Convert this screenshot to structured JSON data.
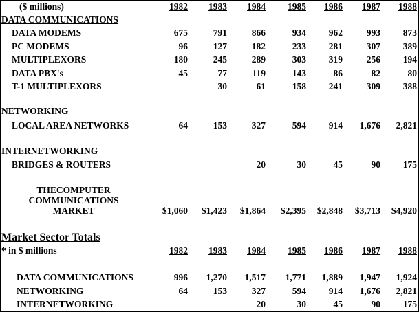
{
  "header": {
    "units": "($ millions)",
    "years": [
      "1982",
      "1983",
      "1984",
      "1985",
      "1986",
      "1987",
      "1988"
    ]
  },
  "sections": {
    "datacom": {
      "title": "DATA COMMUNICATIONS",
      "rows": [
        {
          "label": "DATA MODEMS",
          "values": [
            "675",
            "791",
            "866",
            "934",
            "962",
            "993",
            "873"
          ]
        },
        {
          "label": "PC MODEMS",
          "values": [
            "96",
            "127",
            "182",
            "233",
            "281",
            "307",
            "389"
          ]
        },
        {
          "label": "MULTIPLEXORS",
          "values": [
            "180",
            "245",
            "289",
            "303",
            "319",
            "256",
            "194"
          ]
        },
        {
          "label": "DATA PBX's",
          "values": [
            "45",
            "77",
            "119",
            "143",
            "86",
            "82",
            "80"
          ]
        },
        {
          "label": "T-1 MULTIPLEXORS",
          "values": [
            "",
            "30",
            "61",
            "158",
            "241",
            "309",
            "388"
          ]
        }
      ]
    },
    "networking": {
      "title": "NETWORKING",
      "rows": [
        {
          "label": "LOCAL AREA NETWORKS",
          "values": [
            "64",
            "153",
            "327",
            "594",
            "914",
            "1,676",
            "2,821"
          ]
        }
      ]
    },
    "internetworking": {
      "title": "INTERNETWORKING",
      "rows": [
        {
          "label": "BRIDGES & ROUTERS",
          "values": [
            "",
            "",
            "20",
            "30",
            "45",
            "90",
            "175"
          ]
        }
      ]
    }
  },
  "market": {
    "label_lines": [
      "THECOMPUTER",
      "COMMUNICATIONS",
      "MARKET"
    ],
    "values": [
      "$1,060",
      "$1,423",
      "$1,864",
      "$2,395",
      "$2,848",
      "$3,713",
      "$4,920"
    ]
  },
  "totals": {
    "title": "Market Sector Totals",
    "units": "* in $ millions",
    "years": [
      "1982",
      "1983",
      "1984",
      "1985",
      "1986",
      "1987",
      "1988"
    ],
    "rows": [
      {
        "label": "DATA COMMUNICATIONS",
        "values": [
          "996",
          "1,270",
          "1,517",
          "1,771",
          "1,889",
          "1,947",
          "1,924"
        ]
      },
      {
        "label": "NETWORKING",
        "values": [
          "64",
          "153",
          "327",
          "594",
          "914",
          "1,676",
          "2,821"
        ]
      },
      {
        "label": "INTERNETWORKING",
        "values": [
          "",
          "",
          "20",
          "30",
          "45",
          "90",
          "175"
        ]
      }
    ]
  }
}
